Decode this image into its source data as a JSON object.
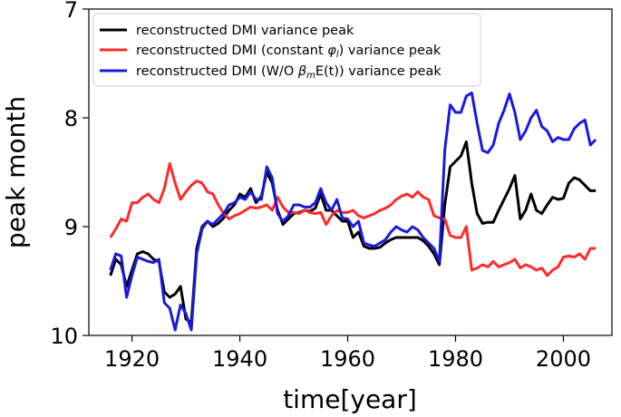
{
  "chart_data": {
    "type": "line",
    "title": "",
    "xlabel": "time[year]",
    "ylabel": "peak month",
    "xlim": [
      1912,
      2009
    ],
    "ylim": [
      10,
      7
    ],
    "y_inverted": true,
    "x_ticks": [
      1920,
      1940,
      1960,
      1980,
      2000
    ],
    "x_tick_labels": [
      "1920",
      "1940",
      "1960",
      "1980",
      "2000"
    ],
    "y_ticks": [
      7,
      8,
      9,
      10
    ],
    "y_tick_labels": [
      "7",
      "8",
      "9",
      "10"
    ],
    "legend_position": "top-left",
    "x": [
      1916,
      1917,
      1918,
      1919,
      1920,
      1921,
      1922,
      1923,
      1924,
      1925,
      1926,
      1927,
      1928,
      1929,
      1930,
      1931,
      1932,
      1933,
      1934,
      1935,
      1936,
      1937,
      1938,
      1939,
      1940,
      1941,
      1942,
      1943,
      1944,
      1945,
      1946,
      1947,
      1948,
      1949,
      1950,
      1951,
      1952,
      1953,
      1954,
      1955,
      1956,
      1957,
      1958,
      1959,
      1960,
      1961,
      1962,
      1963,
      1964,
      1965,
      1966,
      1967,
      1968,
      1969,
      1970,
      1971,
      1972,
      1973,
      1974,
      1975,
      1976,
      1977,
      1978,
      1979,
      1980,
      1981,
      1982,
      1983,
      1984,
      1985,
      1986,
      1987,
      1988,
      1989,
      1990,
      1991,
      1992,
      1993,
      1994,
      1995,
      1996,
      1997,
      1998,
      1999,
      2000,
      2001,
      2002,
      2003,
      2004,
      2005,
      2006
    ],
    "series": [
      {
        "name": "reconstructed DMI variance peak",
        "legend_label": "reconstructed DMI variance peak",
        "color": "#000000",
        "values": [
          9.45,
          9.3,
          9.35,
          9.55,
          9.4,
          9.25,
          9.23,
          9.25,
          9.3,
          9.32,
          9.6,
          9.65,
          9.62,
          9.55,
          9.85,
          9.88,
          9.2,
          9.0,
          8.95,
          9.0,
          8.97,
          8.92,
          8.85,
          8.8,
          8.7,
          8.73,
          8.65,
          8.78,
          8.72,
          8.5,
          8.6,
          8.85,
          8.98,
          8.93,
          8.88,
          8.87,
          8.85,
          8.86,
          8.83,
          8.7,
          8.85,
          8.85,
          8.9,
          8.95,
          8.95,
          9.1,
          9.05,
          9.18,
          9.2,
          9.2,
          9.19,
          9.15,
          9.12,
          9.1,
          9.1,
          9.1,
          9.1,
          9.1,
          9.13,
          9.18,
          9.25,
          9.35,
          8.8,
          8.45,
          8.4,
          8.35,
          8.22,
          8.6,
          8.88,
          8.97,
          8.96,
          8.96,
          8.85,
          8.75,
          8.65,
          8.53,
          8.93,
          8.85,
          8.7,
          8.85,
          8.88,
          8.8,
          8.73,
          8.75,
          8.74,
          8.6,
          8.55,
          8.57,
          8.62,
          8.67,
          8.67
        ]
      },
      {
        "name": "reconstructed DMI (constant φl) variance peak",
        "legend_label_pre": "reconstructed DMI (constant ",
        "legend_label_phi": "φ",
        "legend_label_sub": "l",
        "legend_label_post": ") variance peak",
        "color": "#ff2a2a",
        "values": [
          9.1,
          9.02,
          8.93,
          8.95,
          8.78,
          8.78,
          8.73,
          8.7,
          8.75,
          8.78,
          8.65,
          8.42,
          8.6,
          8.75,
          8.68,
          8.62,
          8.58,
          8.6,
          8.68,
          8.7,
          8.8,
          8.88,
          8.93,
          8.9,
          8.88,
          8.85,
          8.82,
          8.83,
          8.82,
          8.8,
          8.85,
          8.73,
          8.82,
          8.87,
          8.87,
          8.88,
          8.85,
          8.87,
          8.88,
          8.87,
          8.98,
          8.9,
          8.85,
          8.87,
          8.87,
          8.85,
          8.9,
          8.92,
          8.9,
          8.88,
          8.85,
          8.83,
          8.8,
          8.75,
          8.72,
          8.7,
          8.73,
          8.68,
          8.73,
          8.75,
          8.9,
          8.92,
          8.93,
          9.08,
          9.1,
          9.1,
          9.0,
          9.4,
          9.38,
          9.35,
          9.37,
          9.32,
          9.37,
          9.35,
          9.33,
          9.3,
          9.38,
          9.35,
          9.37,
          9.4,
          9.38,
          9.45,
          9.4,
          9.37,
          9.28,
          9.27,
          9.28,
          9.25,
          9.3,
          9.2,
          9.2
        ]
      },
      {
        "name": "reconstructed DMI (W/O βmE(t)) variance peak",
        "legend_label_pre": "reconstructed DMI (W/O ",
        "legend_label_beta": "β",
        "legend_label_sub": "m",
        "legend_label_post": "E(t)) variance peak",
        "color": "#1a1adc",
        "values": [
          9.4,
          9.25,
          9.27,
          9.65,
          9.45,
          9.28,
          9.3,
          9.32,
          9.33,
          9.3,
          9.7,
          9.75,
          9.95,
          9.72,
          9.8,
          9.95,
          9.25,
          9.02,
          8.95,
          8.98,
          8.93,
          8.88,
          8.8,
          8.78,
          8.73,
          8.75,
          8.68,
          8.75,
          8.75,
          8.45,
          8.55,
          8.88,
          8.95,
          8.9,
          8.8,
          8.8,
          8.82,
          8.82,
          8.78,
          8.65,
          8.78,
          8.85,
          8.75,
          8.92,
          8.93,
          9.0,
          8.95,
          9.15,
          9.17,
          9.18,
          9.15,
          9.12,
          9.05,
          9.0,
          9.03,
          9.05,
          9.0,
          9.03,
          9.1,
          9.15,
          9.2,
          9.32,
          8.3,
          7.88,
          7.95,
          7.95,
          7.8,
          7.77,
          8.05,
          8.3,
          8.32,
          8.25,
          8.05,
          7.93,
          7.78,
          7.95,
          8.2,
          8.12,
          8.0,
          7.93,
          8.08,
          8.12,
          8.22,
          8.18,
          8.2,
          8.2,
          8.1,
          8.05,
          8.02,
          8.25,
          8.2
        ]
      }
    ]
  }
}
